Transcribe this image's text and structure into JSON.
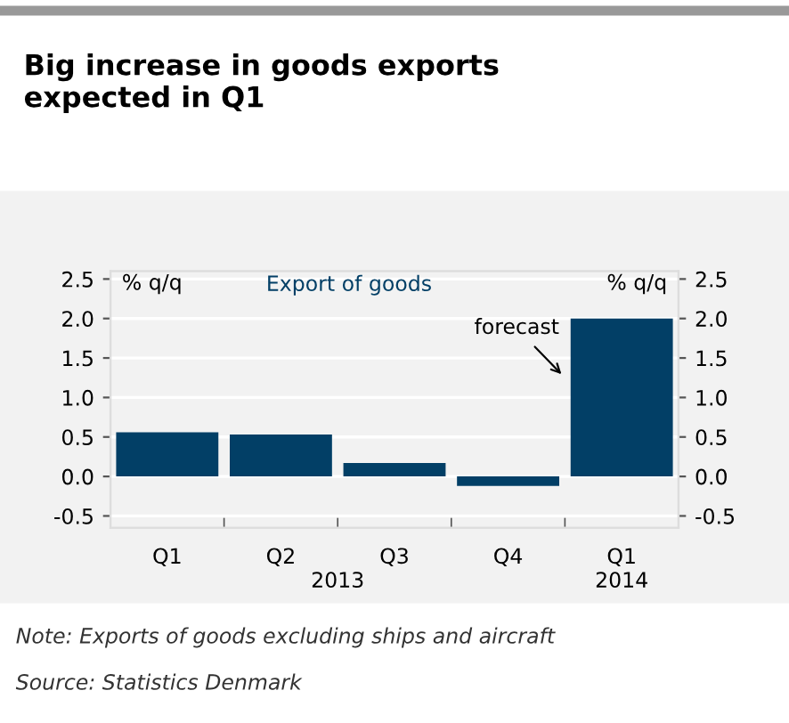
{
  "chart_data": {
    "type": "bar",
    "title": "Big increase in goods exports\nexpected in Q1",
    "subtitle": "Export of goods",
    "ylabel": "% q/q",
    "y2label": "% q/q",
    "categories": [
      "Q1",
      "Q2",
      "Q3",
      "Q4",
      "Q1"
    ],
    "values": [
      0.56,
      0.53,
      0.17,
      -0.12,
      2.0
    ],
    "color": "#023f66",
    "ylim": [
      -0.65,
      2.6
    ],
    "y2lim": [
      -0.65,
      2.6
    ],
    "yticks": [
      {
        "value": -0.5,
        "label": "-0.5"
      },
      {
        "value": 0,
        "label": "0.0"
      },
      {
        "value": 0.5,
        "label": "0.5"
      },
      {
        "value": 1,
        "label": "1.0"
      },
      {
        "value": 1.5,
        "label": "1.5"
      },
      {
        "value": 2,
        "label": "2.0"
      },
      {
        "value": 2.5,
        "label": "2.5"
      }
    ],
    "y2ticks": [
      {
        "value": -0.5,
        "label": "-0.5"
      },
      {
        "value": 0,
        "label": "0.0"
      },
      {
        "value": 0.5,
        "label": "0.5"
      },
      {
        "value": 1,
        "label": "1.0"
      },
      {
        "value": 1.5,
        "label": "1.5"
      },
      {
        "value": 2,
        "label": "2.0"
      },
      {
        "value": 2.5,
        "label": "2.5"
      }
    ],
    "grid": "y",
    "annotations": [
      "forecast",
      "2013",
      "2014",
      "Note: Exports of goods excluding ships and aircraft",
      "Source: Statistics Denmark"
    ]
  }
}
